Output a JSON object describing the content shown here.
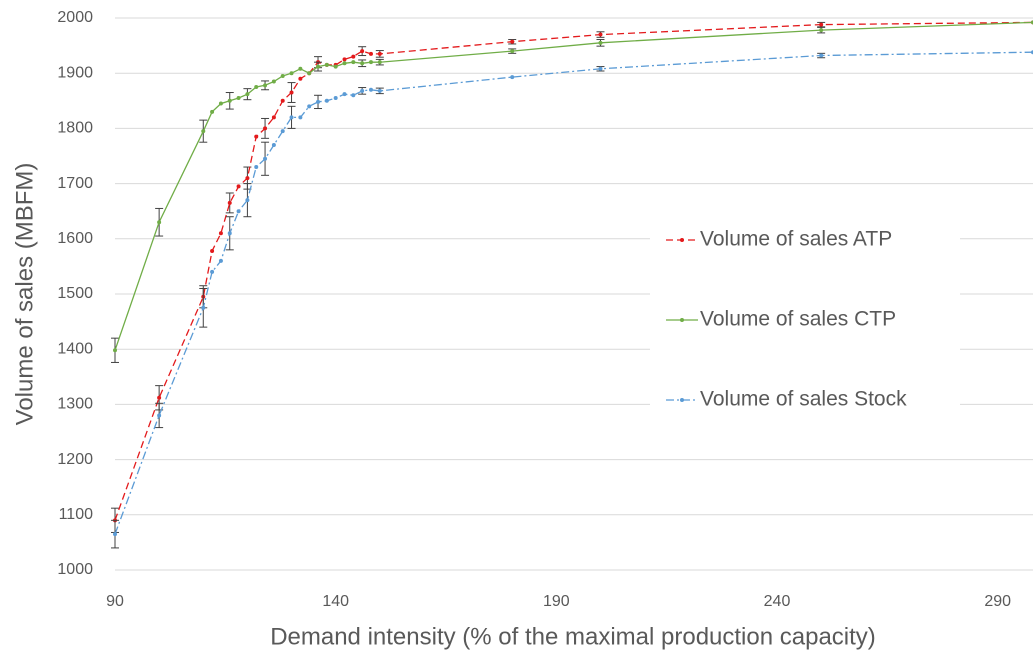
{
  "chart_data": {
    "type": "line",
    "x_label": "Demand intensity (% of the maximal production capacity)",
    "y_label": "Volume of sales (MBFM)",
    "x": [
      90,
      100,
      110,
      112,
      114,
      116,
      118,
      120,
      122,
      124,
      126,
      128,
      130,
      132,
      134,
      136,
      138,
      140,
      142,
      144,
      146,
      148,
      150,
      180,
      200,
      250,
      298
    ],
    "series": [
      {
        "name": "Volume of sales ATP",
        "color": "#e31a1c",
        "dash": "7 4",
        "values": [
          1090,
          1312,
          1495,
          1578,
          1610,
          1665,
          1695,
          1710,
          1785,
          1800,
          1820,
          1850,
          1865,
          1890,
          1900,
          1920,
          1915,
          1915,
          1925,
          1930,
          1940,
          1935,
          1935,
          1957,
          1970,
          1988,
          1992
        ],
        "errors": [
          22,
          22,
          20,
          null,
          null,
          18,
          null,
          20,
          null,
          18,
          null,
          null,
          18,
          null,
          null,
          10,
          null,
          null,
          null,
          null,
          8,
          null,
          6,
          4,
          5,
          4,
          null
        ]
      },
      {
        "name": "Volume of sales CTP",
        "color": "#70ad47",
        "dash": "none",
        "values": [
          1398,
          1630,
          1795,
          1830,
          1845,
          1850,
          1855,
          1862,
          1875,
          1878,
          1885,
          1895,
          1900,
          1908,
          1900,
          1912,
          1915,
          1912,
          1918,
          1920,
          1918,
          1920,
          1920,
          1940,
          1955,
          1978,
          1992
        ],
        "errors": [
          22,
          25,
          20,
          null,
          null,
          15,
          null,
          10,
          null,
          8,
          null,
          null,
          null,
          null,
          null,
          8,
          null,
          null,
          null,
          null,
          6,
          null,
          5,
          4,
          6,
          5,
          null
        ]
      },
      {
        "name": "Volume of sales Stock",
        "color": "#5b9bd5",
        "dash": "8 3 2 3",
        "values": [
          1065,
          1280,
          1475,
          1540,
          1560,
          1610,
          1650,
          1670,
          1730,
          1745,
          1770,
          1795,
          1820,
          1820,
          1840,
          1848,
          1850,
          1855,
          1862,
          1860,
          1868,
          1870,
          1868,
          1893,
          1908,
          1932,
          1938
        ],
        "errors": [
          25,
          22,
          35,
          null,
          null,
          30,
          null,
          30,
          null,
          30,
          null,
          null,
          20,
          null,
          null,
          12,
          null,
          null,
          null,
          null,
          6,
          null,
          5,
          null,
          4,
          4,
          null
        ]
      }
    ],
    "xlim": [
      90,
      298
    ],
    "ylim": [
      1000,
      2000
    ],
    "xticks": [
      90,
      140,
      190,
      240,
      290
    ],
    "yticks": [
      1000,
      1100,
      1200,
      1300,
      1400,
      1500,
      1600,
      1700,
      1800,
      1900,
      2000
    ],
    "grid": true,
    "legend": "right"
  }
}
